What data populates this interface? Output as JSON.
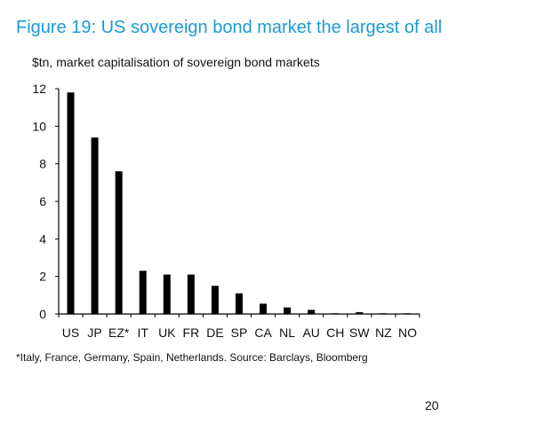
{
  "figure": {
    "title": "Figure 19: US sovereign bond market the largest of all",
    "subtitle": "$tn, market capitalisation of sovereign bond markets",
    "footnote": "*Italy, France, Germany, Spain, Netherlands.  Source: Barclays, Bloomberg",
    "page_number": "20"
  },
  "colors": {
    "title": "#1a9bd6",
    "bars": "#000000",
    "text": "#111111"
  },
  "chart_data": {
    "type": "bar",
    "categories": [
      "US",
      "JP",
      "EZ*",
      "IT",
      "UK",
      "FR",
      "DE",
      "SP",
      "CA",
      "NL",
      "AU",
      "CH",
      "SW",
      "NZ",
      "NO"
    ],
    "values": [
      11.8,
      9.4,
      7.6,
      2.3,
      2.1,
      2.1,
      1.5,
      1.1,
      0.55,
      0.35,
      0.22,
      0.03,
      0.1,
      0.03,
      0.03
    ],
    "title": "Figure 19: US sovereign bond market the largest of all",
    "xlabel": "",
    "ylabel": "$tn, market capitalisation of sovereign bond markets",
    "ylim": [
      0,
      12
    ],
    "yticks": [
      0,
      2,
      4,
      6,
      8,
      10,
      12
    ],
    "grid": false,
    "legend": "none"
  }
}
